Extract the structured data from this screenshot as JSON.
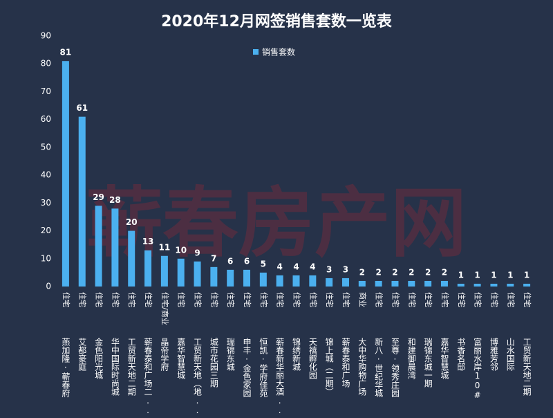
{
  "chart_data": {
    "type": "bar",
    "title": "2020年12月网签销售套数一览表",
    "watermark": "蕲春房产网",
    "categories": [
      "燕加隆·蕲春府",
      "艾都豪庭",
      "金色阳光城",
      "华中国际时尚城",
      "工贸新天地二期",
      "蕲春泰和广场二...",
      "晶帝学府",
      "嘉华智慧城",
      "工贸新天地（地...",
      "城市花园三期",
      "瑞锦东城",
      "申丰·金色家园",
      "恒凯·学府佳苑",
      "蕲春新华丽大酒...",
      "锦绣新城",
      "天禧孵化园",
      "锦上城（二期）",
      "蕲春泰和广场",
      "大中华购物广场",
      "新八·世纪华城",
      "至尊·领秀庄园",
      "和建御晨湾",
      "瑞锦东城一期",
      "嘉华智慧城",
      "书香名邸",
      "富丽水岸10#",
      "博雅芳邻",
      "山水国际",
      "工贸新天地二期"
    ],
    "category_types": [
      "住宅",
      "住宅",
      "住宅",
      "住宅",
      "住宅",
      "住宅",
      "住宅/商业",
      "住宅",
      "住宅",
      "住宅",
      "住宅",
      "住宅",
      "住宅",
      "住宅",
      "住宅",
      "住宅",
      "住宅",
      "住宅",
      "商业",
      "住宅",
      "住宅",
      "住宅",
      "住宅",
      "住宅",
      "住宅",
      "住宅",
      "住宅",
      "住宅",
      "住宅"
    ],
    "series": [
      {
        "name": "销售套数",
        "color": "#4bb0ef",
        "values": [
          81,
          61,
          29,
          28,
          20,
          13,
          11,
          10,
          9,
          7,
          6,
          6,
          5,
          4,
          4,
          4,
          3,
          3,
          2,
          2,
          2,
          2,
          2,
          2,
          1,
          1,
          1,
          1,
          1
        ]
      }
    ],
    "ylim": [
      0,
      90
    ],
    "yticks": [
      0,
      10,
      20,
      30,
      40,
      50,
      60,
      70,
      80,
      90
    ],
    "legend": "top"
  }
}
